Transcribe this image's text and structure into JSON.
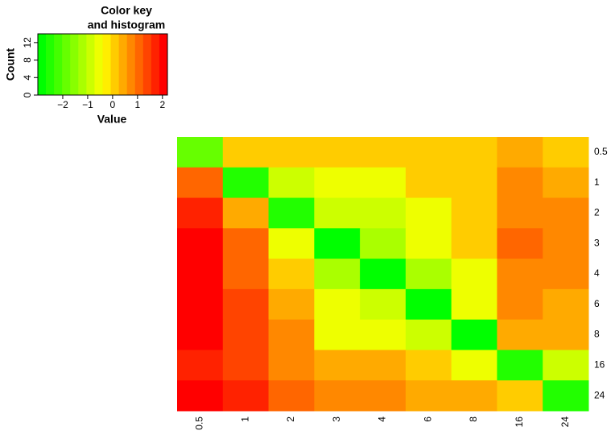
{
  "chart_data": {
    "type": "heatmap",
    "x": [
      "0.5",
      "1",
      "2",
      "3",
      "4",
      "6",
      "8",
      "16",
      "24"
    ],
    "y": [
      "0.5",
      "1",
      "2",
      "3",
      "4",
      "6",
      "8",
      "16",
      "24"
    ],
    "values": [
      [
        -1.9,
        0.1,
        0.1,
        0.1,
        0.1,
        0.1,
        0.1,
        0.4,
        0.1
      ],
      [
        1.1,
        -2.5,
        -0.9,
        -0.6,
        -0.6,
        0.1,
        0.1,
        0.7,
        0.4
      ],
      [
        1.7,
        0.4,
        -2.5,
        -0.9,
        -0.9,
        -0.6,
        0.1,
        0.7,
        0.7
      ],
      [
        2.0,
        1.1,
        -0.6,
        -2.8,
        -1.2,
        -0.6,
        0.1,
        1.1,
        0.7
      ],
      [
        2.0,
        1.1,
        0.1,
        -1.2,
        -2.8,
        -1.2,
        -0.6,
        0.7,
        0.7
      ],
      [
        2.0,
        1.4,
        0.4,
        -0.6,
        -0.9,
        -2.8,
        -0.6,
        0.7,
        0.4
      ],
      [
        2.0,
        1.4,
        0.7,
        -0.6,
        -0.6,
        -0.9,
        -2.8,
        0.4,
        0.4
      ],
      [
        1.7,
        1.4,
        0.7,
        0.4,
        0.4,
        0.1,
        -0.6,
        -2.5,
        -0.9
      ],
      [
        2.0,
        1.7,
        1.1,
        0.7,
        0.7,
        0.4,
        0.4,
        0.1,
        -2.5
      ]
    ],
    "key": {
      "title": [
        "Color key",
        "and histogram"
      ],
      "xlabel": "Value",
      "ylabel": "Count",
      "xlim": [
        -3,
        2.2
      ],
      "xticks": [
        {
          "value": -2,
          "label": "−2"
        },
        {
          "value": -1,
          "label": "−1"
        },
        0,
        1,
        2
      ],
      "ylim": [
        0,
        14
      ],
      "yticks": [
        0,
        4,
        8,
        12
      ],
      "colors": [
        "#00FF00",
        "#22FF00",
        "#44FF00",
        "#66FF00",
        "#88FF00",
        "#AAFF00",
        "#CCFF00",
        "#EEFF00",
        "#FFEE00",
        "#FFCC00",
        "#FFAA00",
        "#FF8800",
        "#FF6600",
        "#FF4400",
        "#FF2200",
        "#FF0000"
      ]
    }
  }
}
